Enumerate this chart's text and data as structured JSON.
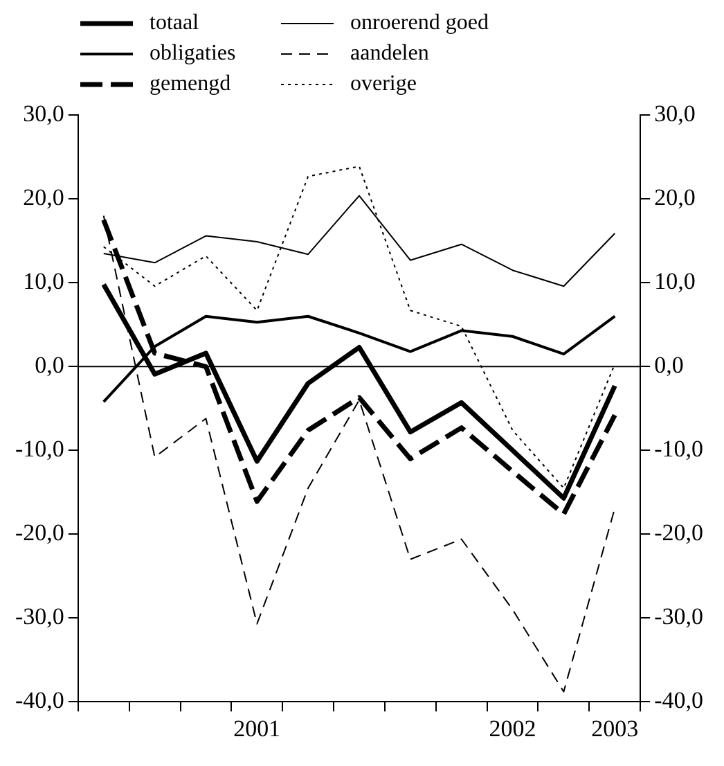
{
  "chart_data": {
    "type": "line",
    "categories": [
      null,
      null,
      null,
      "2001",
      null,
      null,
      null,
      null,
      "2002",
      null,
      "2003"
    ],
    "series": [
      {
        "name": "totaal",
        "color": "#000000",
        "line_style": "solid",
        "values": [
          9.8,
          -0.9,
          1.6,
          -11.3,
          -2.0,
          2.3,
          -7.8,
          -4.3,
          -10.0,
          -15.7,
          -2.3
        ]
      },
      {
        "name": "obligaties",
        "color": "#000000",
        "line_style": "solid",
        "values": [
          -4.2,
          2.4,
          6.0,
          5.3,
          6.0,
          4.0,
          1.8,
          4.3,
          3.6,
          1.5,
          6.0
        ]
      },
      {
        "name": "gemengd",
        "color": "#000000",
        "line_style": "dashed",
        "values": [
          17.5,
          1.6,
          0.0,
          -16.1,
          -7.6,
          -3.7,
          -11.0,
          -7.3,
          -12.5,
          -17.6,
          -5.8
        ]
      },
      {
        "name": "onroerend goed",
        "color": "#000000",
        "line_style": "solid",
        "values": [
          13.5,
          12.4,
          15.6,
          14.9,
          13.4,
          20.4,
          12.7,
          14.6,
          11.5,
          9.6,
          15.9
        ]
      },
      {
        "name": "aandelen",
        "color": "#000000",
        "line_style": "dashed",
        "values": [
          18.0,
          -10.8,
          -6.2,
          -30.7,
          -14.5,
          -4.0,
          -23.0,
          -20.6,
          -29.0,
          -38.8,
          -16.9
        ]
      },
      {
        "name": "overige",
        "color": "#000000",
        "line_style": "dotted",
        "values": [
          14.3,
          9.6,
          13.2,
          6.7,
          22.7,
          23.9,
          6.7,
          4.8,
          -7.6,
          -14.5,
          0.3
        ]
      }
    ],
    "ylim": [
      -40,
      30
    ],
    "yticks": [
      {
        "value": -40,
        "label": "-40,0"
      },
      {
        "value": -30,
        "label": "-30,0"
      },
      {
        "value": -20,
        "label": "-20,0"
      },
      {
        "value": -10,
        "label": "-10,0"
      },
      {
        "value": 0,
        "label": "0,0"
      },
      {
        "value": 10,
        "label": "10,0"
      },
      {
        "value": 20,
        "label": "20,0"
      },
      {
        "value": 30,
        "label": "30,0"
      }
    ],
    "y2lim": [
      -40,
      30
    ],
    "y2ticks": [
      {
        "value": -40,
        "label": "-40,0"
      },
      {
        "value": -30,
        "label": "-30,0"
      },
      {
        "value": -20,
        "label": "-20,0"
      },
      {
        "value": -10,
        "label": "-10,0"
      },
      {
        "value": 0,
        "label": "0,0"
      },
      {
        "value": 10,
        "label": "10,0"
      },
      {
        "value": 20,
        "label": "20,0"
      },
      {
        "value": 30,
        "label": "30,0"
      }
    ],
    "ref_lines": [
      {
        "axis": "y",
        "value": 0,
        "color": "#000000"
      }
    ],
    "grid": false,
    "legend": "top",
    "marker": "none"
  }
}
